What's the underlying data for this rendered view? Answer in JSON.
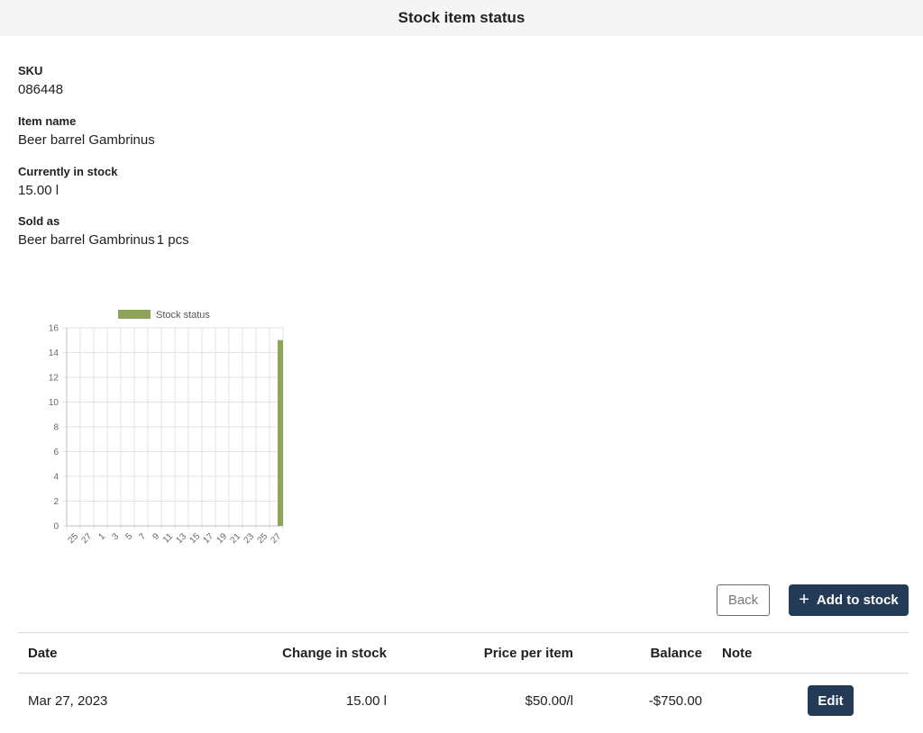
{
  "header": {
    "title": "Stock item status"
  },
  "details": {
    "sku_label": "SKU",
    "sku_value": "086448",
    "name_label": "Item name",
    "name_value": "Beer barrel Gambrinus",
    "stock_label": "Currently in stock",
    "stock_value": "15.00 l",
    "sold_as_label": "Sold as",
    "sold_as_name": "Beer barrel Gambrinus",
    "sold_as_qty": "1 pcs"
  },
  "chart_data": {
    "type": "bar",
    "legend": "Stock status",
    "legend_position": "top",
    "bar_color": "#8fa35a",
    "grid": true,
    "ylim": [
      0,
      16
    ],
    "yticks": [
      0,
      2,
      4,
      6,
      8,
      10,
      12,
      14,
      16
    ],
    "xticks": [
      "25",
      "27",
      "1",
      "3",
      "5",
      "7",
      "9",
      "11",
      "13",
      "15",
      "17",
      "19",
      "21",
      "23",
      "25",
      "27"
    ],
    "series": [
      {
        "name": "Stock status",
        "points": [
          {
            "x": "27",
            "y": 15
          }
        ]
      }
    ]
  },
  "actions": {
    "back_label": "Back",
    "add_label": "Add to stock",
    "add_icon": "plus-icon"
  },
  "table": {
    "headers": {
      "date": "Date",
      "change": "Change in stock",
      "price": "Price per item",
      "balance": "Balance",
      "note": "Note"
    },
    "rows": [
      {
        "date": "Mar 27, 2023",
        "change": "15.00 l",
        "price": "$50.00/l",
        "balance": "-$750.00",
        "note": "",
        "edit_label": "Edit"
      }
    ]
  },
  "colors": {
    "primary": "#243b57",
    "bar": "#8fa35a"
  }
}
